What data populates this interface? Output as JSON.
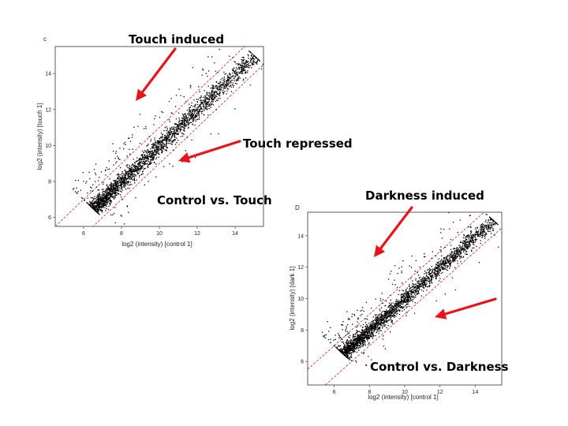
{
  "annotations": {
    "touch_induced": "Touch induced",
    "touch_repressed": "Touch repressed",
    "control_vs_touch": "Control vs. Touch",
    "darkness_induced": "Darkness induced",
    "control_vs_darkness": "Control vs. Darkness"
  },
  "colors": {
    "arrow": "#e8141b",
    "guide": "#e0201a",
    "points": "#000000"
  },
  "chart_data": [
    {
      "type": "scatter",
      "panel_label": "c",
      "xlabel": "log2 (intensity) [control 1]",
      "ylabel": "log2 (intensity) [touch 1]",
      "xlim": [
        4.5,
        15.5
      ],
      "ylim": [
        5.5,
        15.5
      ],
      "xticks": [
        6,
        8,
        10,
        12,
        14
      ],
      "yticks": [
        6,
        8,
        10,
        12,
        14
      ],
      "guide_lines": [
        "y = x + 1",
        "y = x - 1"
      ],
      "point_cloud": {
        "n": 2600,
        "center": [
          9.3,
          9.3
        ],
        "range": [
          6.5,
          15
        ],
        "outlier_direction": "above"
      },
      "grid": false
    },
    {
      "type": "scatter",
      "panel_label": "D",
      "xlabel": "log2 (intensity) [control 1]",
      "ylabel": "log2 (intensity) [dark 1]",
      "xlim": [
        4.5,
        15.5
      ],
      "ylim": [
        4.5,
        15.5
      ],
      "xticks": [
        6,
        8,
        10,
        12,
        14
      ],
      "yticks": [
        6,
        8,
        10,
        12,
        14
      ],
      "guide_lines": [
        "y = x + 1",
        "y = x - 1"
      ],
      "point_cloud": {
        "n": 2600,
        "center": [
          9.3,
          9.3
        ],
        "range": [
          6.5,
          15
        ],
        "outlier_direction": "above"
      },
      "grid": false
    }
  ]
}
